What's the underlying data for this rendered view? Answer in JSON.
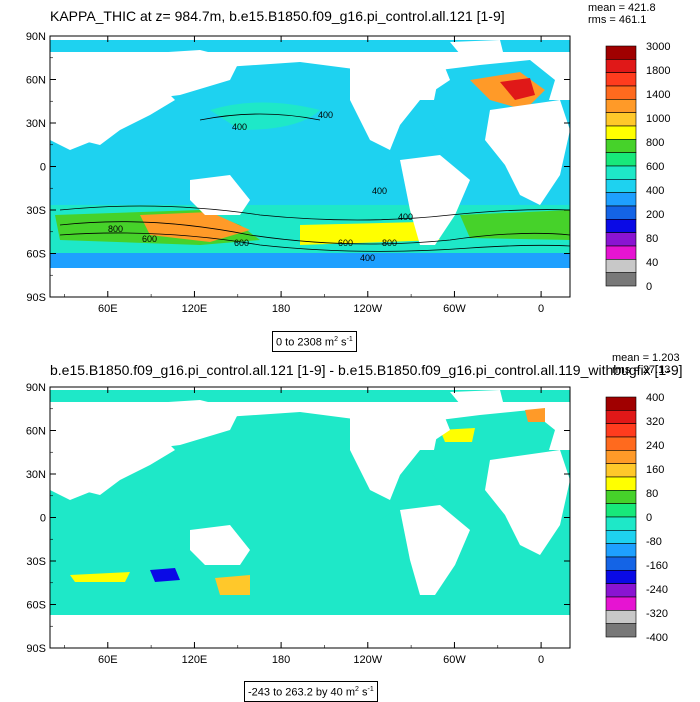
{
  "panels": [
    {
      "title": "KAPPA_THIC at z= 984.7m, b.e15.B1850.f09_g16.pi_control.all.121 [1-9]",
      "mean_text": "mean = 421.8",
      "rms_text": "rms = 461.1",
      "range_main": "0 to 2308 m",
      "range_exp": "2",
      "range_tail": " s",
      "range_tail_exp": "-1",
      "y_ticks": [
        "90N",
        "60N",
        "30N",
        "0",
        "30S",
        "60S",
        "90S"
      ],
      "x_ticks": [
        "60E",
        "120E",
        "180",
        "120W",
        "60W",
        "0"
      ],
      "colorbar_labels": [
        "3000",
        "1800",
        "1400",
        "1000",
        "800",
        "600",
        "400",
        "200",
        "80",
        "40",
        "0"
      ],
      "colorbar_colors": [
        "#a00000",
        "#e01818",
        "#ff3c1e",
        "#ff6a1e",
        "#ff9a28",
        "#ffc82a",
        "#ffff00",
        "#46d22a",
        "#18e87a",
        "#1ee8c8",
        "#1ed2f0",
        "#1ea0ff",
        "#1464e6",
        "#0a0ae6",
        "#8a14d2",
        "#e614d2",
        "#c8c8c8",
        "#787878"
      ],
      "contour_labels": [
        "400",
        "400",
        "400",
        "400",
        "600",
        "800",
        "600",
        "800",
        "600",
        "400"
      ]
    },
    {
      "title": "b.e15.B1850.f09_g16.pi_control.all.121 [1-9] - b.e15.B1850.f09_g16.pi_control.all.119_withbugfix [1-9]",
      "mean_text": "mean = 1.203",
      "rms_text": "rms = 27.13",
      "range_main": "-243 to 263.2 by 40 m",
      "range_exp": "2",
      "range_tail": " s",
      "range_tail_exp": "-1",
      "y_ticks": [
        "90N",
        "60N",
        "30N",
        "0",
        "30S",
        "60S",
        "90S"
      ],
      "x_ticks": [
        "60E",
        "120E",
        "180",
        "120W",
        "60W",
        "0"
      ],
      "colorbar_labels": [
        "400",
        "320",
        "240",
        "160",
        "80",
        "0",
        "-80",
        "-160",
        "-240",
        "-320",
        "-400"
      ],
      "colorbar_colors": [
        "#a00000",
        "#e01818",
        "#ff3c1e",
        "#ff6a1e",
        "#ff9a28",
        "#ffc82a",
        "#ffff00",
        "#46d22a",
        "#18e87a",
        "#1ee8c8",
        "#1ed2f0",
        "#1ea0ff",
        "#1464e6",
        "#0a0ae6",
        "#8a14d2",
        "#e614d2",
        "#c8c8c8",
        "#787878"
      ]
    }
  ],
  "chart_data": [
    {
      "type": "heatmap",
      "title": "KAPPA_THIC at z= 984.7m, b.e15.B1850.f09_g16.pi_control.all.121 [1-9]",
      "variable": "KAPPA_THIC",
      "units": "m^2 s^-1",
      "depth": "984.7m",
      "mean": 421.8,
      "rms": 461.1,
      "data_min": 0,
      "data_max": 2308,
      "x_range": [
        20,
        380
      ],
      "x_ticks": [
        "60E",
        "120E",
        "180",
        "120W",
        "60W",
        "0"
      ],
      "y_range": [
        -90,
        90
      ],
      "y_ticks": [
        "90N",
        "60N",
        "30N",
        "0",
        "30S",
        "60S",
        "90S"
      ],
      "levels": [
        0,
        40,
        80,
        200,
        400,
        600,
        800,
        1000,
        1400,
        1800,
        3000
      ],
      "contour_labels": [
        400,
        400,
        400,
        400,
        600,
        800,
        600,
        800,
        600,
        400
      ]
    },
    {
      "type": "heatmap",
      "title": "b.e15.B1850.f09_g16.pi_control.all.121 [1-9] - b.e15.B1850.f09_g16.pi_control.all.119_withbugfix [1-9]",
      "units": "m^2 s^-1",
      "mean": 1.203,
      "rms": 27.13,
      "data_min": -243,
      "data_max": 263.2,
      "contour_interval": 40,
      "x_range": [
        20,
        380
      ],
      "x_ticks": [
        "60E",
        "120E",
        "180",
        "120W",
        "60W",
        "0"
      ],
      "y_range": [
        -90,
        90
      ],
      "y_ticks": [
        "90N",
        "60N",
        "30N",
        "0",
        "30S",
        "60S",
        "90S"
      ],
      "levels": [
        -400,
        -320,
        -240,
        -160,
        -80,
        0,
        80,
        160,
        240,
        320,
        400
      ]
    }
  ]
}
